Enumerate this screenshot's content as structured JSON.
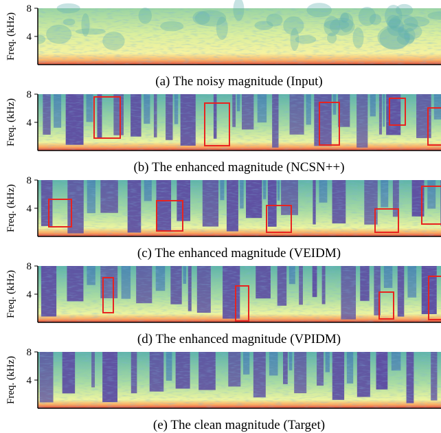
{
  "figure": {
    "panels": [
      {
        "y_label": "Freq. (kHz)",
        "y_ticks": [
          "8",
          "4"
        ],
        "caption": "(a) The noisy magnitude (Input)"
      },
      {
        "y_label": "Freq. (kHz)",
        "y_ticks": [
          "8",
          "4"
        ],
        "caption": "(b) The enhanced magnitude (NCSN++)"
      },
      {
        "y_label": "Freq. (kHz)",
        "y_ticks": [
          "8",
          "4"
        ],
        "caption": "(c) The enhanced magnitude (VEIDM)"
      },
      {
        "y_label": "Freq. (kHz)",
        "y_ticks": [
          "8",
          "4"
        ],
        "caption": "(d) The enhanced magnitude (VPIDM)"
      },
      {
        "y_label": "Freq. (kHz)",
        "y_ticks": [
          "8",
          "4"
        ],
        "caption": "(e) The clean magnitude (Target)"
      }
    ]
  }
}
